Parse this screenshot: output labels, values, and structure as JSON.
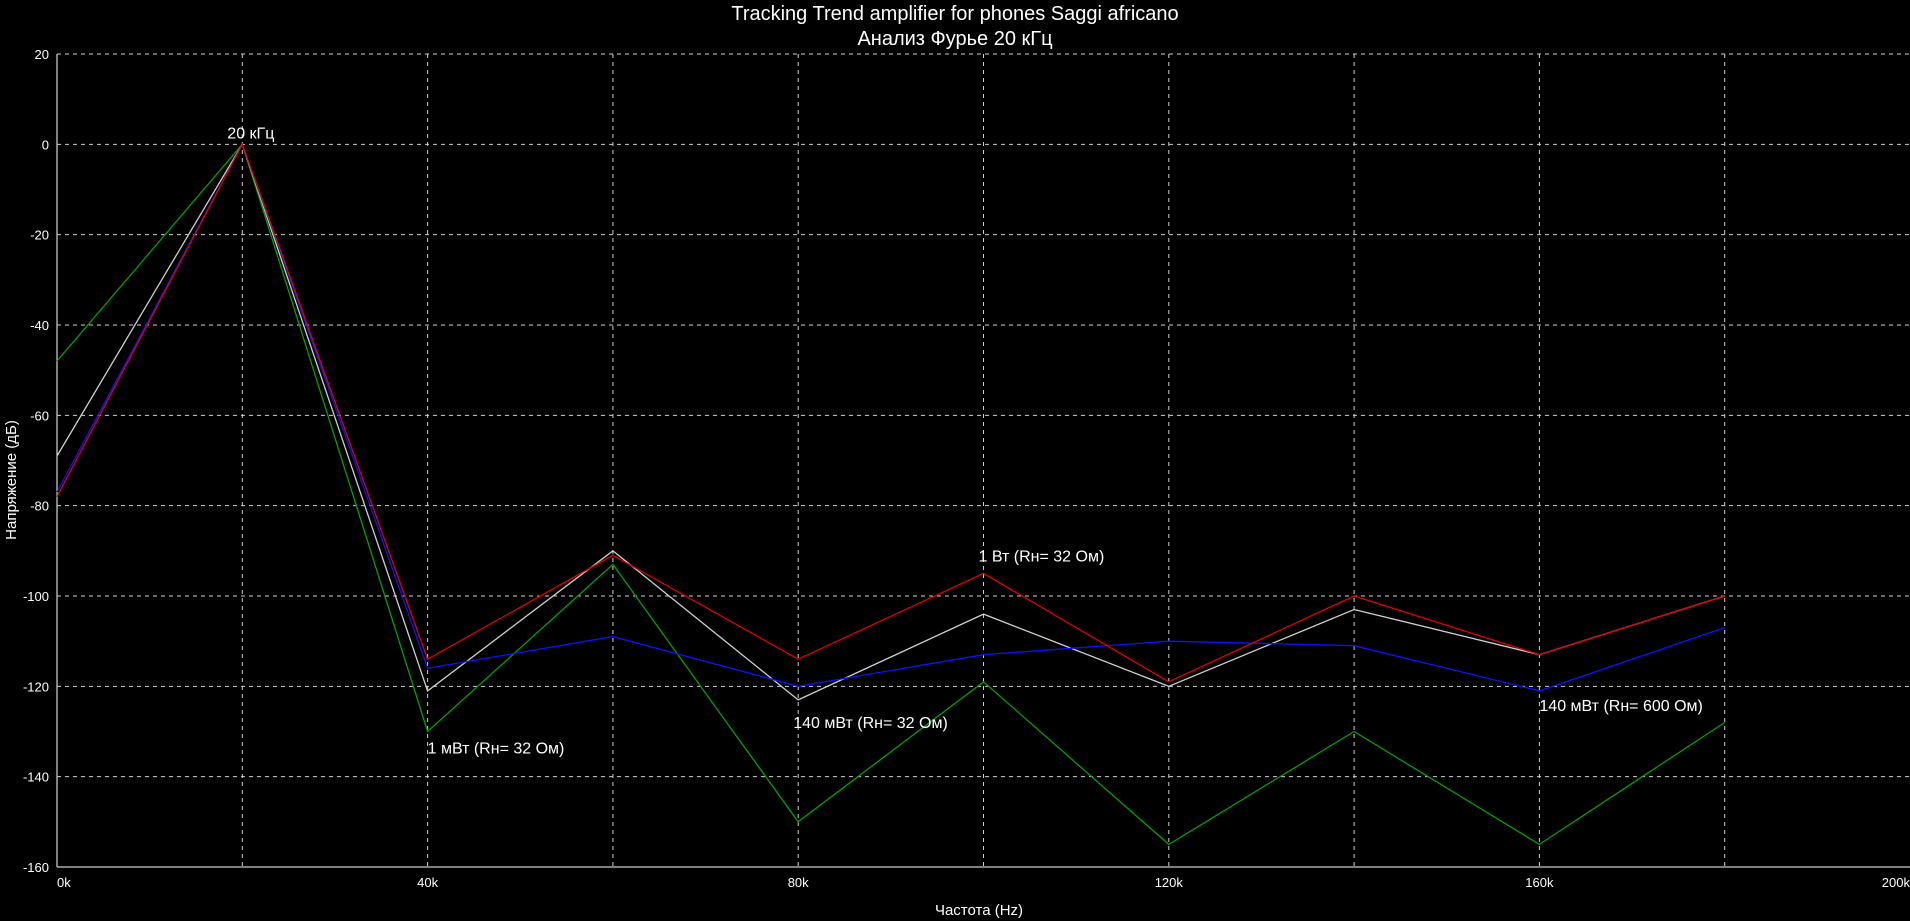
{
  "chart_data": {
    "type": "line",
    "title": "Tracking Trend amplifier for phones Saggi africano",
    "subtitle": "Анализ Фурье 20 кГц",
    "xlabel": "Частота (Hz)",
    "ylabel": "Напряжение (дБ)",
    "xlim": [
      0,
      200000
    ],
    "ylim": [
      -160,
      20
    ],
    "x_ticks": [
      0,
      40000,
      80000,
      120000,
      160000,
      200000
    ],
    "x_tick_labels": [
      "0k",
      "40k",
      "80k",
      "120k",
      "160k",
      "200k"
    ],
    "y_ticks": [
      20,
      0,
      -20,
      -40,
      -60,
      -80,
      -100,
      -120,
      -140,
      -160
    ],
    "y_tick_labels": [
      "20",
      "0",
      "-20",
      "-40",
      "-60",
      "-80",
      "-100",
      "-120",
      "-140",
      "-160"
    ],
    "grid": true,
    "x": [
      0,
      20000,
      40000,
      60000,
      80000,
      100000,
      120000,
      140000,
      160000,
      180000
    ],
    "series": [
      {
        "color": "#00a000",
        "values": [
          -48,
          0,
          -130,
          -93,
          -150,
          -119,
          -155,
          -130,
          -155,
          -128
        ]
      },
      {
        "color": "#d0d0d0",
        "values": [
          -69,
          0,
          -121,
          -90,
          -123,
          -104,
          -120,
          -103,
          -113,
          -100
        ]
      },
      {
        "color": "#1010ff",
        "values": [
          -77,
          0,
          -116,
          -109,
          -120,
          -113,
          -110,
          -111,
          -121,
          -107
        ]
      },
      {
        "color": "#e00000",
        "values": [
          -78,
          0,
          -114,
          -91,
          -114,
          -95,
          -119,
          -100,
          -113,
          -100
        ]
      }
    ],
    "annotations": [
      {
        "text": "20 кГц",
        "x": 20000,
        "y": 0
      },
      {
        "text": "1 мВт (Rн= 32 Ом)",
        "x": 40000,
        "y": -130
      },
      {
        "text": "140 мВт (Rн= 32 Ом)",
        "x": 80000,
        "y": -123
      },
      {
        "text": "1 Вт (Rн= 32 Ом)",
        "x": 100000,
        "y": -95
      },
      {
        "text": "140 мВт (Rн= 600 Ом)",
        "x": 160000,
        "y": -121
      }
    ]
  }
}
